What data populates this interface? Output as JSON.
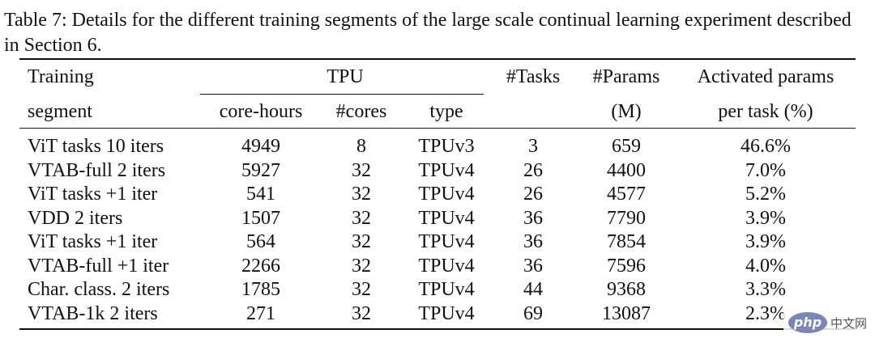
{
  "caption": "Table 7: Details for the different training segments of the large scale continual learning experiment described in Section 6.",
  "headers": {
    "training_line1": "Training",
    "training_line2": "segment",
    "tpu_group": "TPU",
    "core_hours": "core-hours",
    "cores": "#cores",
    "type": "type",
    "tasks": "#Tasks",
    "params_line1": "#Params",
    "params_line2": "(M)",
    "activated_line1": "Activated params",
    "activated_line2": "per task (%)"
  },
  "rows": [
    {
      "segment": "ViT tasks 10 iters",
      "core_hours": "4949",
      "cores": "8",
      "type": "TPUv3",
      "tasks": "3",
      "params": "659",
      "activated": "46.6%"
    },
    {
      "segment": "VTAB-full 2 iters",
      "core_hours": "5927",
      "cores": "32",
      "type": "TPUv4",
      "tasks": "26",
      "params": "4400",
      "activated": "7.0%"
    },
    {
      "segment": "ViT tasks +1 iter",
      "core_hours": "541",
      "cores": "32",
      "type": "TPUv4",
      "tasks": "26",
      "params": "4577",
      "activated": "5.2%"
    },
    {
      "segment": "VDD 2 iters",
      "core_hours": "1507",
      "cores": "32",
      "type": "TPUv4",
      "tasks": "36",
      "params": "7790",
      "activated": "3.9%"
    },
    {
      "segment": "ViT tasks +1 iter",
      "core_hours": "564",
      "cores": "32",
      "type": "TPUv4",
      "tasks": "36",
      "params": "7854",
      "activated": "3.9%"
    },
    {
      "segment": "VTAB-full +1 iter",
      "core_hours": "2266",
      "cores": "32",
      "type": "TPUv4",
      "tasks": "36",
      "params": "7596",
      "activated": "4.0%"
    },
    {
      "segment": "Char. class. 2 iters",
      "core_hours": "1785",
      "cores": "32",
      "type": "TPUv4",
      "tasks": "44",
      "params": "9368",
      "activated": "3.3%"
    },
    {
      "segment": "VTAB-1k 2 iters",
      "core_hours": "271",
      "cores": "32",
      "type": "TPUv4",
      "tasks": "69",
      "params": "13087",
      "activated": "2.3%"
    }
  ],
  "watermark": {
    "logo": "php",
    "text": "中文网"
  }
}
